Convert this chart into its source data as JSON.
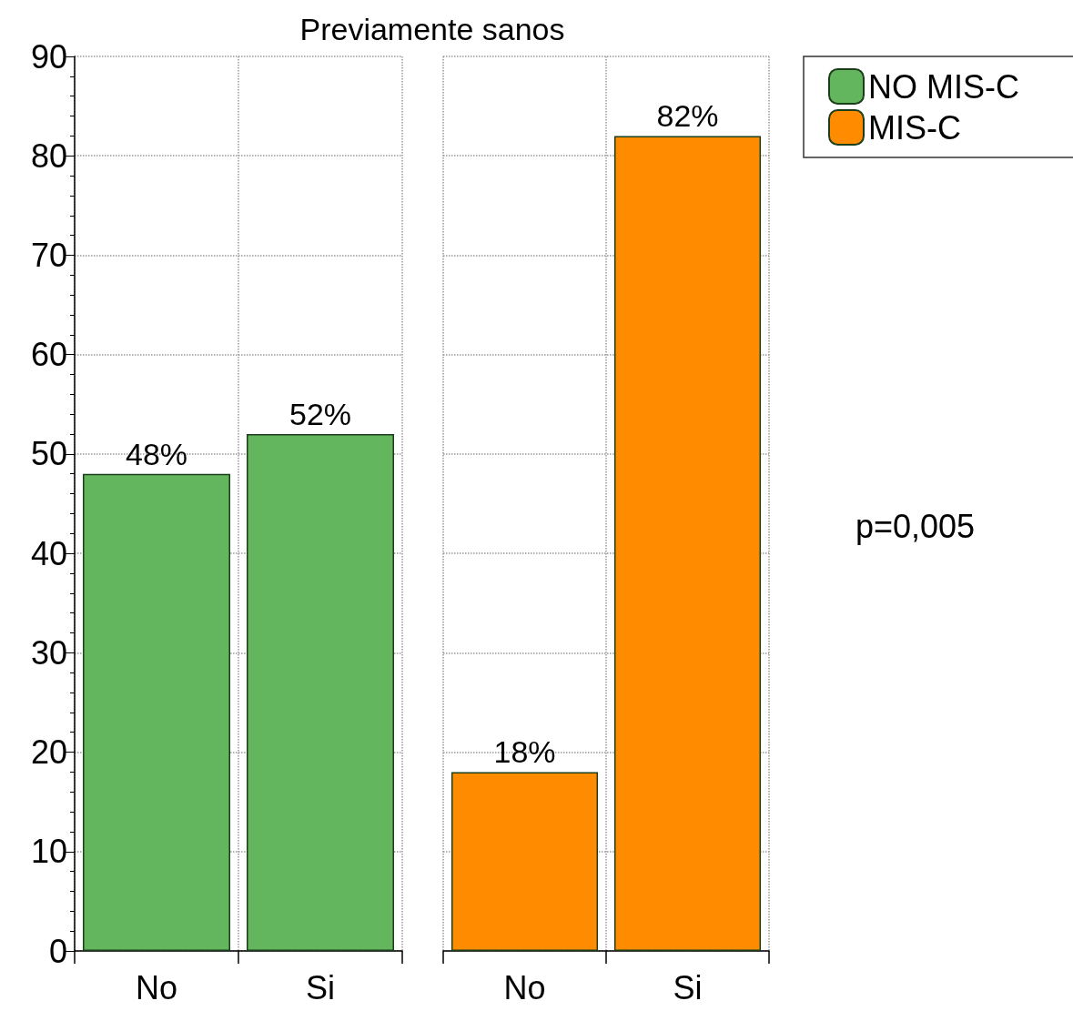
{
  "chart_data": [
    {
      "type": "bar",
      "title": "Previamente sanos",
      "categories": [
        "No",
        "Si"
      ],
      "series": [
        {
          "name": "NO MIS-C",
          "color": "#63b65d",
          "values": [
            48,
            52
          ],
          "value_labels": [
            "48%",
            "52%"
          ]
        }
      ],
      "ylim": [
        0,
        90
      ],
      "yticks": [
        0,
        10,
        20,
        30,
        40,
        50,
        60,
        70,
        80,
        90
      ],
      "grid": true,
      "legend": "top right"
    },
    {
      "type": "bar",
      "categories": [
        "No",
        "Si"
      ],
      "series": [
        {
          "name": "MIS-C",
          "color": "#ff8c00",
          "values": [
            18,
            82
          ],
          "value_labels": [
            "18%",
            "82%"
          ]
        }
      ],
      "ylim": [
        0,
        90
      ],
      "yticks": [
        0,
        10,
        20,
        30,
        40,
        50,
        60,
        70,
        80,
        90
      ],
      "grid": true,
      "legend": "top right",
      "tick_labels": "x",
      "annotations": [
        "p=0,005"
      ]
    }
  ]
}
